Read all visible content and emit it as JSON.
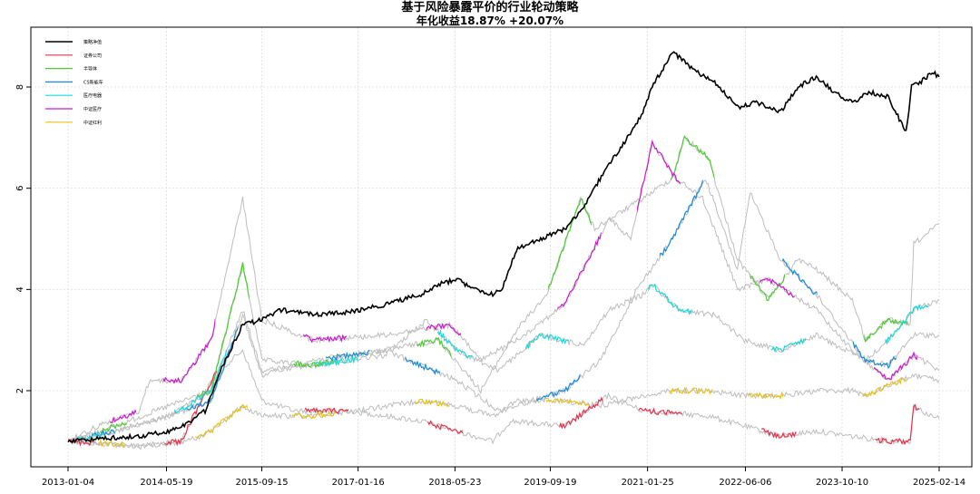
{
  "title": "基于风险暴露平价的行业轮动策略",
  "subtitle": "年化收益18.87% +20.07%",
  "chart_data": {
    "type": "line",
    "xlim": [
      "2013-01-04",
      "2025-02-14"
    ],
    "ylim": [
      0.5,
      9.2
    ],
    "x_ticks": [
      "2013-01-04",
      "2014-05-19",
      "2015-09-15",
      "2017-01-16",
      "2018-05-23",
      "2019-09-19",
      "2021-01-25",
      "2022-06-06",
      "2023-10-10",
      "2025-02-14"
    ],
    "y_ticks": [
      2,
      4,
      6,
      8
    ],
    "grid": true,
    "legend_position": "top-left",
    "background_color": "#bdbdbd",
    "series": [
      {
        "name": "策略净值",
        "color": "#000000",
        "x": [
          "2013-01-04",
          "2013-06-01",
          "2014-01-01",
          "2014-06-01",
          "2014-09-01",
          "2014-12-01",
          "2015-03-01",
          "2015-06-10",
          "2015-09-15",
          "2015-12-15",
          "2016-06-01",
          "2016-12-01",
          "2017-06-01",
          "2017-12-01",
          "2018-03-01",
          "2018-06-01",
          "2018-09-01",
          "2018-12-01",
          "2019-01-15",
          "2019-04-01",
          "2019-08-01",
          "2019-12-01",
          "2020-03-01",
          "2020-07-15",
          "2020-10-01",
          "2021-01-01",
          "2021-02-18",
          "2021-06-01",
          "2021-10-01",
          "2022-01-01",
          "2022-04-26",
          "2022-08-01",
          "2022-12-01",
          "2023-03-01",
          "2023-06-01",
          "2023-09-01",
          "2023-12-01",
          "2024-03-01",
          "2024-06-01",
          "2024-08-30",
          "2024-09-27",
          "2024-11-15",
          "2025-01-10",
          "2025-02-14"
        ],
        "y": [
          1.0,
          1.05,
          1.1,
          1.2,
          1.35,
          1.6,
          2.5,
          3.3,
          3.4,
          3.6,
          3.5,
          3.55,
          3.7,
          3.9,
          4.1,
          4.2,
          4.0,
          3.9,
          4.0,
          4.8,
          5.0,
          5.2,
          5.6,
          6.5,
          6.9,
          7.5,
          8.0,
          8.7,
          8.3,
          8.1,
          7.6,
          7.7,
          7.5,
          8.0,
          8.2,
          7.9,
          7.7,
          7.9,
          7.8,
          7.1,
          8.0,
          8.1,
          8.3,
          8.2
        ]
      },
      {
        "name": "证券公司",
        "color": "#e6334d",
        "x": [
          "2013-01-04",
          "2013-07-01",
          "2014-01-01",
          "2014-08-01",
          "2015-01-15",
          "2015-06-10",
          "2015-09-15",
          "2016-03-01",
          "2016-12-01",
          "2017-12-01",
          "2018-06-01",
          "2018-12-01",
          "2019-03-01",
          "2019-12-01",
          "2020-07-10",
          "2021-01-01",
          "2021-12-01",
          "2022-06-01",
          "2022-12-01",
          "2023-06-01",
          "2023-12-01",
          "2024-06-01",
          "2024-09-20",
          "2024-10-08",
          "2025-01-01",
          "2025-02-14"
        ],
        "y": [
          1.0,
          0.95,
          0.9,
          1.0,
          2.3,
          2.8,
          1.8,
          1.6,
          1.6,
          1.4,
          1.2,
          1.0,
          1.4,
          1.3,
          1.9,
          1.6,
          1.5,
          1.3,
          1.1,
          1.2,
          1.1,
          1.0,
          1.0,
          1.7,
          1.5,
          1.45
        ]
      },
      {
        "name": "半导体",
        "color": "#4dcc33",
        "x": [
          "2013-01-04",
          "2013-09-01",
          "2014-06-01",
          "2015-01-01",
          "2015-06-10",
          "2015-09-15",
          "2016-06-01",
          "2017-06-01",
          "2018-03-01",
          "2018-10-01",
          "2019-04-01",
          "2019-09-01",
          "2020-02-20",
          "2020-05-01",
          "2021-01-01",
          "2021-06-01",
          "2021-08-01",
          "2021-12-01",
          "2022-04-26",
          "2022-10-01",
          "2023-03-01",
          "2023-06-01",
          "2023-12-01",
          "2024-02-05",
          "2024-06-01",
          "2024-09-20",
          "2024-10-08",
          "2024-12-15",
          "2025-02-14"
        ],
        "y": [
          1.0,
          1.3,
          1.7,
          2.0,
          4.5,
          2.6,
          2.5,
          2.8,
          3.0,
          2.0,
          3.2,
          3.9,
          5.8,
          5.2,
          5.8,
          6.2,
          7.0,
          6.6,
          4.6,
          3.8,
          4.6,
          4.4,
          3.8,
          3.0,
          3.4,
          3.3,
          4.9,
          5.1,
          5.3
        ]
      },
      {
        "name": "CS新能车",
        "color": "#1a8cd9",
        "x": [
          "2013-01-04",
          "2013-09-01",
          "2014-06-01",
          "2015-01-01",
          "2015-06-10",
          "2015-09-15",
          "2016-06-01",
          "2017-06-01",
          "2018-06-01",
          "2019-01-01",
          "2019-12-01",
          "2020-06-01",
          "2020-12-01",
          "2021-06-01",
          "2021-11-15",
          "2022-04-26",
          "2022-07-01",
          "2022-12-01",
          "2023-06-01",
          "2024-02-05",
          "2024-06-01",
          "2024-10-08",
          "2025-02-14"
        ],
        "y": [
          1.0,
          1.2,
          1.5,
          1.8,
          3.5,
          2.3,
          2.6,
          2.8,
          2.2,
          1.6,
          2.0,
          2.6,
          4.0,
          5.0,
          6.2,
          4.4,
          5.9,
          4.6,
          3.9,
          2.6,
          2.5,
          3.1,
          3.1
        ]
      },
      {
        "name": "医疗电器",
        "color": "#1ad9d9",
        "x": [
          "2013-01-04",
          "2013-09-01",
          "2014-06-01",
          "2015-01-01",
          "2015-06-10",
          "2015-09-15",
          "2016-06-01",
          "2017-06-01",
          "2018-01-01",
          "2018-06-01",
          "2019-01-01",
          "2019-08-01",
          "2020-03-01",
          "2020-07-15",
          "2021-01-01",
          "2021-02-18",
          "2021-07-01",
          "2022-01-01",
          "2022-06-01",
          "2022-12-01",
          "2023-06-01",
          "2024-02-05",
          "2024-06-01",
          "2024-10-08",
          "2025-02-14"
        ],
        "y": [
          1.0,
          1.2,
          1.5,
          2.0,
          3.6,
          2.4,
          2.5,
          2.7,
          3.4,
          2.8,
          2.4,
          3.1,
          2.9,
          3.6,
          3.9,
          4.1,
          3.6,
          3.5,
          3.0,
          2.8,
          3.1,
          2.6,
          3.0,
          3.6,
          3.8
        ]
      },
      {
        "name": "中证医疗",
        "color": "#cc1acc",
        "x": [
          "2013-01-04",
          "2013-06-01",
          "2014-01-01",
          "2014-02-20",
          "2014-08-01",
          "2015-01-01",
          "2015-06-10",
          "2015-09-15",
          "2016-06-01",
          "2017-06-01",
          "2018-05-01",
          "2018-10-01",
          "2019-04-01",
          "2019-12-01",
          "2020-07-15",
          "2020-11-01",
          "2021-02-18",
          "2021-06-15",
          "2021-11-01",
          "2022-04-26",
          "2022-10-01",
          "2023-06-01",
          "2023-12-01",
          "2024-06-01",
          "2024-10-08",
          "2025-02-14"
        ],
        "y": [
          1.0,
          1.3,
          1.6,
          2.2,
          2.2,
          3.0,
          5.8,
          3.4,
          3.0,
          3.1,
          3.3,
          2.6,
          3.0,
          3.7,
          5.4,
          5.0,
          6.9,
          6.2,
          5.8,
          4.0,
          4.2,
          3.6,
          2.8,
          2.2,
          2.7,
          2.4
        ]
      },
      {
        "name": "中证红利",
        "color": "#e6c21a",
        "x": [
          "2013-01-04",
          "2013-09-01",
          "2014-01-01",
          "2014-06-01",
          "2014-09-01",
          "2015-01-01",
          "2015-06-10",
          "2015-09-15",
          "2016-06-01",
          "2017-01-01",
          "2017-12-01",
          "2018-06-01",
          "2018-12-01",
          "2019-04-01",
          "2019-12-01",
          "2020-06-01",
          "2021-01-01",
          "2021-06-01",
          "2021-12-01",
          "2022-06-01",
          "2022-12-01",
          "2023-06-01",
          "2023-12-01",
          "2024-02-05",
          "2024-06-01",
          "2024-10-08",
          "2025-02-14"
        ],
        "y": [
          1.0,
          0.95,
          0.9,
          0.95,
          1.0,
          1.2,
          1.7,
          1.5,
          1.5,
          1.6,
          1.8,
          1.7,
          1.5,
          1.8,
          1.8,
          1.7,
          1.9,
          2.0,
          2.0,
          1.9,
          1.9,
          2.0,
          2.0,
          1.9,
          2.1,
          2.3,
          2.2
        ]
      }
    ]
  }
}
